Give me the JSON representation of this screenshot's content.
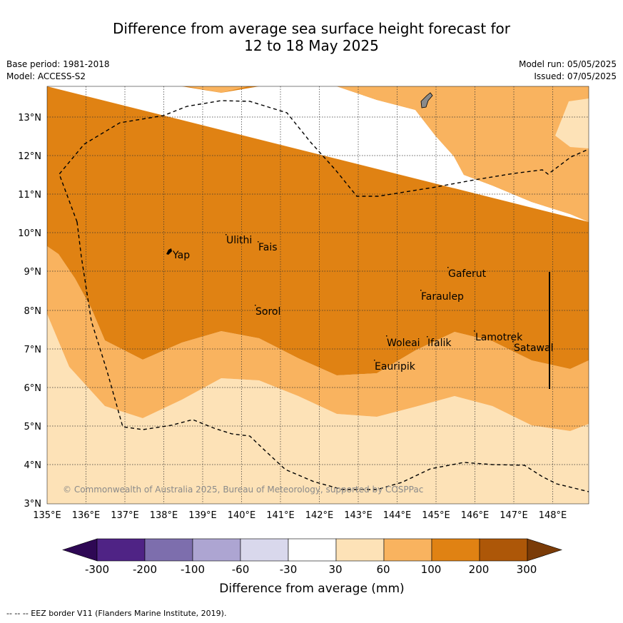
{
  "title_line1": "Difference from average sea surface height forecast for",
  "title_line2": "12 to 18 May 2025",
  "meta_left": [
    "Base period: 1981-2018",
    "Model: ACCESS-S2"
  ],
  "meta_right": [
    "Model run: 05/05/2025",
    "Issued: 07/05/2025"
  ],
  "lat_labels": [
    "13°N",
    "12°N",
    "11°N",
    "10°N",
    "9°N",
    "8°N",
    "7°N",
    "6°N",
    "5°N",
    "4°N",
    "3°N"
  ],
  "lon_labels": [
    "135°E",
    "136°E",
    "137°E",
    "138°E",
    "139°E",
    "140°E",
    "141°E",
    "142°E",
    "143°E",
    "144°E",
    "145°E",
    "146°E",
    "147°E",
    "148°E"
  ],
  "places": [
    "Yap",
    "Ulithi",
    "Fais",
    "Gaferut",
    "Faraulep",
    "Sorol",
    "Woleai",
    "Ifalik",
    "Lamotrek",
    "Satawal",
    "Eauripik"
  ],
  "credit": "© Commonwealth of Australia 2025, Bureau of Meteorology, supported by COSPPac",
  "colorbar": {
    "ticks": [
      "-300",
      "-200",
      "-100",
      "-60",
      "-30",
      "30",
      "60",
      "100",
      "200",
      "300"
    ],
    "label": "Difference from average (mm)",
    "colors": [
      "#2e0854",
      "#4f2385",
      "#7d6ead",
      "#ada5d2",
      "#d9d8ec",
      "#ffffff",
      "#fde2b7",
      "#f9b35f",
      "#e08213",
      "#ad5708",
      "#7a3b07"
    ]
  },
  "footnote": "-- -- -- EEZ border V11 (Flanders Marine Institute, 2019)."
}
